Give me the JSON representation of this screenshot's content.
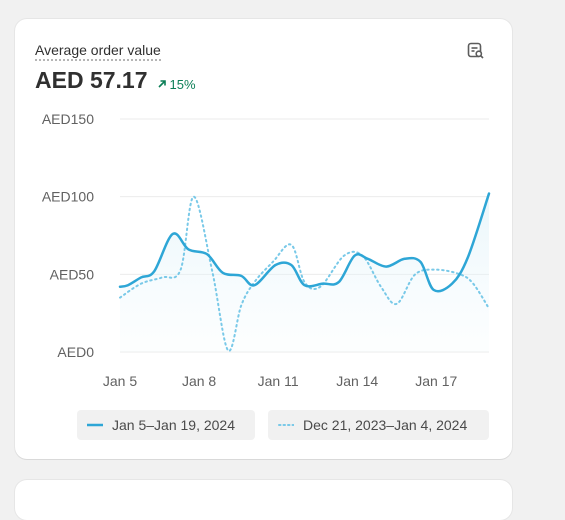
{
  "metric": {
    "title": "Average order value",
    "value": "AED 57.17",
    "change": "15%",
    "change_direction": "up",
    "change_color": "#0c7f57",
    "action_icon": "chart-magnify-icon"
  },
  "chart_data": {
    "type": "line",
    "title": "",
    "xlabel": "",
    "ylabel": "",
    "ylim": [
      0,
      150
    ],
    "y_ticks": [
      "AED0",
      "AED50",
      "AED100",
      "AED150"
    ],
    "y_tick_values": [
      0,
      50,
      100,
      150
    ],
    "x_ticks": [
      "Jan 5",
      "Jan 8",
      "Jan 11",
      "Jan 14",
      "Jan 17"
    ],
    "x_tick_positions": [
      0,
      3,
      6,
      9,
      12
    ],
    "grid": true,
    "legend_position": "bottom",
    "series": [
      {
        "name": "Jan 5–Jan 19, 2024",
        "style": "solid",
        "color": "#2ea6d6",
        "x": [
          0,
          0.3,
          0.8,
          1.3,
          2.0,
          2.6,
          3.3,
          3.9,
          4.6,
          5.1,
          5.9,
          6.5,
          7.0,
          7.7,
          8.3,
          8.9,
          9.4,
          10.1,
          10.8,
          11.4,
          11.9,
          12.6,
          13.2,
          14.0
        ],
        "values": [
          42,
          43,
          48,
          52,
          76,
          66,
          63,
          51,
          49,
          43,
          56,
          56,
          43,
          44,
          45,
          62,
          60,
          55,
          60,
          58,
          40,
          44,
          61,
          102
        ]
      },
      {
        "name": "Dec 21, 2023–Jan 4, 2024",
        "style": "dotted",
        "color": "#79c9e8",
        "x": [
          0,
          0.8,
          1.6,
          2.3,
          2.8,
          3.5,
          4.1,
          4.6,
          5.1,
          5.8,
          6.5,
          7.0,
          7.6,
          8.5,
          9.2,
          9.9,
          10.5,
          11.2,
          12.0,
          12.9,
          13.4,
          14.0
        ],
        "values": [
          35,
          44,
          48,
          53,
          100,
          52,
          1,
          30,
          45,
          58,
          69,
          45,
          42,
          62,
          62,
          42,
          31,
          50,
          53,
          50,
          44,
          28
        ]
      }
    ]
  }
}
